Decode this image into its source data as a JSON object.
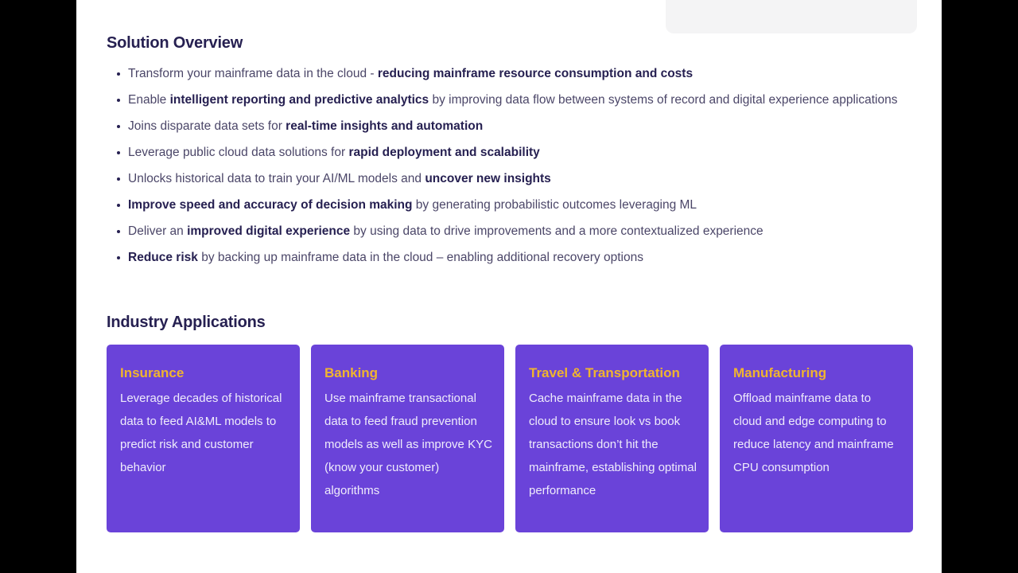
{
  "colors": {
    "frame_bg": "#000000",
    "content_bg": "#ffffff",
    "heading": "#262051",
    "body_text": "#4b4668",
    "bold_text": "#262051",
    "card_bg": "#6a43d9",
    "card_title": "#f0b42f",
    "card_text": "#efecfb",
    "header_box_bg": "#f4f4f5"
  },
  "solution_overview": {
    "title": "Solution Overview",
    "bullets": [
      [
        {
          "t": "Transform your mainframe data in the cloud - ",
          "b": false
        },
        {
          "t": "reducing mainframe resource consumption and costs",
          "b": true
        }
      ],
      [
        {
          "t": "Enable ",
          "b": false
        },
        {
          "t": "intelligent reporting and predictive analytics",
          "b": true
        },
        {
          "t": " by improving data flow between systems of record and digital experience applications",
          "b": false
        }
      ],
      [
        {
          "t": "Joins disparate data sets for ",
          "b": false
        },
        {
          "t": "real-time insights and automation",
          "b": true
        }
      ],
      [
        {
          "t": "Leverage public cloud data solutions for ",
          "b": false
        },
        {
          "t": "rapid deployment and scalability",
          "b": true
        }
      ],
      [
        {
          "t": "Unlocks historical data to train your AI/ML models and ",
          "b": false
        },
        {
          "t": "uncover new insights",
          "b": true
        }
      ],
      [
        {
          "t": "Improve speed and accuracy of decision making",
          "b": true
        },
        {
          "t": " by generating probabilistic outcomes leveraging ML",
          "b": false
        }
      ],
      [
        {
          "t": "Deliver an ",
          "b": false
        },
        {
          "t": "improved digital experience",
          "b": true
        },
        {
          "t": " by using data to drive improvements and a more contextualized experience",
          "b": false
        }
      ],
      [
        {
          "t": "Reduce risk",
          "b": true
        },
        {
          "t": " by backing up mainframe data in the cloud – enabling additional recovery options",
          "b": false
        }
      ]
    ]
  },
  "industry_applications": {
    "title": "Industry Applications",
    "cards": [
      {
        "title": "Insurance",
        "body": "Leverage decades of historical data to feed AI&ML models to predict risk and customer behavior"
      },
      {
        "title": "Banking",
        "body": "Use mainframe transactional data to feed fraud prevention models as well as improve KYC (know your customer) algorithms"
      },
      {
        "title": "Travel & Transportation",
        "body": "Cache mainframe data in the cloud to ensure look vs book transactions don’t hit the mainframe, establishing optimal performance"
      },
      {
        "title": "Manufacturing",
        "body": "Offload mainframe data to cloud and edge computing to reduce latency and mainframe CPU consumption"
      }
    ]
  }
}
